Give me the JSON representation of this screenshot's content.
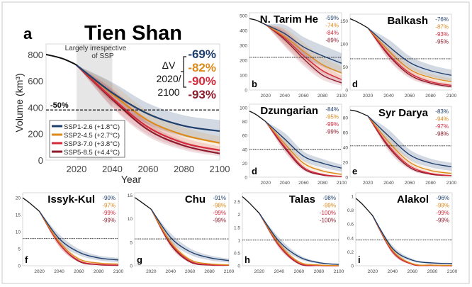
{
  "colors": {
    "ssp126": "#1f3f6e",
    "ssp245": "#dd8a1c",
    "ssp370": "#d42a3c",
    "ssp585": "#8e1b2b",
    "hist": "#111111",
    "band_gray": "#e6e6e6"
  },
  "chart_data": [
    {
      "id": "a",
      "type": "line",
      "panel_label": "a",
      "title": "Tien Shan",
      "xlabel": "Year",
      "ylabel": "Volume (km³)",
      "xlim": [
        2003,
        2100
      ],
      "ylim": [
        0,
        880
      ],
      "xticks": [
        2020,
        2040,
        2060,
        2080,
        2100
      ],
      "yticks": [
        0,
        200,
        400,
        600,
        800
      ],
      "half_line": {
        "value": 380,
        "label": "-50%"
      },
      "shaded_period": {
        "x": [
          2020,
          2040
        ],
        "label_lines": [
          "Largely irrespective",
          "of SSP"
        ]
      },
      "delta_label_lines": [
        "ΔV",
        "2020/",
        "2100"
      ],
      "history": {
        "x": [
          2003,
          2008,
          2013,
          2018,
          2020
        ],
        "y": [
          800,
          785,
          765,
          735,
          720
        ]
      },
      "x": [
        2020,
        2040,
        2060,
        2080,
        2100
      ],
      "series": [
        {
          "name": "SSP1-2.6 (+1.8°C)",
          "key": "ssp126",
          "values": [
            720,
            510,
            350,
            260,
            220
          ],
          "change": "-69%"
        },
        {
          "name": "SSP2-4.5 (+2.7°C)",
          "key": "ssp245",
          "values": [
            720,
            500,
            300,
            190,
            130
          ],
          "change": "-82%"
        },
        {
          "name": "SSP3-7.0 (+3.8°C)",
          "key": "ssp370",
          "values": [
            720,
            470,
            250,
            130,
            75
          ],
          "change": "-90%"
        },
        {
          "name": "SSP5-8.5 (+4.4°C)",
          "key": "ssp585",
          "values": [
            720,
            460,
            230,
            110,
            50
          ],
          "change": "-93%"
        }
      ]
    },
    {
      "id": "b",
      "type": "line",
      "panel_label": "b",
      "title": "N. Tarim He",
      "xlim": [
        2003,
        2100
      ],
      "ylim": [
        0,
        520
      ],
      "xticks": [
        2020,
        2040,
        2060,
        2080,
        2100
      ],
      "yticks": [
        0,
        100,
        200,
        300,
        400,
        500
      ],
      "half_line": {
        "value": 220
      },
      "history": {
        "x": [
          2003,
          2010,
          2020
        ],
        "y": [
          480,
          470,
          440
        ]
      },
      "x": [
        2020,
        2040,
        2060,
        2080,
        2100
      ],
      "series": [
        {
          "key": "ssp126",
          "values": [
            440,
            380,
            290,
            230,
            180
          ],
          "change": "-59%"
        },
        {
          "key": "ssp245",
          "values": [
            440,
            360,
            260,
            170,
            115
          ],
          "change": "-74%"
        },
        {
          "key": "ssp370",
          "values": [
            440,
            350,
            230,
            130,
            70
          ],
          "change": "-84%"
        },
        {
          "key": "ssp585",
          "values": [
            440,
            340,
            210,
            100,
            48
          ],
          "change": "-89%"
        }
      ]
    },
    {
      "id": "c",
      "type": "line",
      "panel_label": "d",
      "title": "Balkash",
      "xlim": [
        2003,
        2100
      ],
      "ylim": [
        0,
        165
      ],
      "xticks": [
        2020,
        2040,
        2060,
        2080,
        2100
      ],
      "yticks": [
        0,
        50,
        100,
        150
      ],
      "half_line": {
        "value": 68
      },
      "history": {
        "x": [
          2003,
          2010,
          2020
        ],
        "y": [
          155,
          148,
          135
        ]
      },
      "x": [
        2020,
        2040,
        2060,
        2080,
        2100
      ],
      "series": [
        {
          "key": "ssp126",
          "values": [
            135,
            95,
            60,
            42,
            32
          ],
          "change": "-76%"
        },
        {
          "key": "ssp245",
          "values": [
            135,
            85,
            45,
            27,
            18
          ],
          "change": "-87%"
        },
        {
          "key": "ssp370",
          "values": [
            135,
            78,
            37,
            18,
            10
          ],
          "change": "-93%"
        },
        {
          "key": "ssp585",
          "values": [
            135,
            75,
            33,
            15,
            7
          ],
          "change": "-95%"
        }
      ]
    },
    {
      "id": "d",
      "type": "line",
      "panel_label": "d",
      "title": "Dzungarian",
      "xlim": [
        2003,
        2100
      ],
      "ylim": [
        0,
        105
      ],
      "xticks": [
        2020,
        2040,
        2060,
        2080,
        2100
      ],
      "yticks": [
        0,
        20,
        40,
        60,
        80,
        100
      ],
      "half_line": {
        "value": 40
      },
      "history": {
        "x": [
          2003,
          2010,
          2020
        ],
        "y": [
          95,
          90,
          80
        ]
      },
      "x": [
        2020,
        2040,
        2060,
        2080,
        2100
      ],
      "series": [
        {
          "key": "ssp126",
          "values": [
            80,
            55,
            30,
            20,
            13
          ],
          "change": "-84%"
        },
        {
          "key": "ssp245",
          "values": [
            80,
            48,
            20,
            9,
            4
          ],
          "change": "-95%"
        },
        {
          "key": "ssp370",
          "values": [
            80,
            44,
            14,
            4,
            1
          ],
          "change": "-99%"
        },
        {
          "key": "ssp585",
          "values": [
            80,
            42,
            12,
            3,
            1
          ],
          "change": "-99%"
        }
      ]
    },
    {
      "id": "e",
      "type": "line",
      "panel_label": "e",
      "title": "Syr Darya",
      "xlim": [
        2003,
        2100
      ],
      "ylim": [
        0,
        95
      ],
      "xticks": [
        2020,
        2040,
        2060,
        2080,
        2100
      ],
      "yticks": [
        0,
        20,
        40,
        60,
        80
      ],
      "half_line": {
        "value": 42
      },
      "history": {
        "x": [
          2003,
          2010,
          2020
        ],
        "y": [
          90,
          88,
          82
        ]
      },
      "x": [
        2020,
        2040,
        2060,
        2080,
        2100
      ],
      "series": [
        {
          "key": "ssp126",
          "values": [
            82,
            55,
            30,
            19,
            14
          ],
          "change": "-83%"
        },
        {
          "key": "ssp245",
          "values": [
            82,
            47,
            20,
            9,
            5
          ],
          "change": "-94%"
        },
        {
          "key": "ssp370",
          "values": [
            82,
            42,
            15,
            5,
            2
          ],
          "change": "-97%"
        },
        {
          "key": "ssp585",
          "values": [
            82,
            40,
            13,
            4,
            2
          ],
          "change": "-98%"
        }
      ]
    },
    {
      "id": "f",
      "type": "line",
      "panel_label": "f",
      "title": "Issyk-Kul",
      "xlim": [
        2003,
        2100
      ],
      "ylim": [
        0,
        21.5
      ],
      "xticks": [
        2020,
        2040,
        2060,
        2080,
        2100
      ],
      "yticks": [
        0,
        5,
        10,
        15,
        20
      ],
      "half_line": {
        "value": 8
      },
      "history": {
        "x": [
          2003,
          2010,
          2020
        ],
        "y": [
          20,
          18.5,
          16
        ]
      },
      "x": [
        2020,
        2040,
        2060,
        2080,
        2100
      ],
      "series": [
        {
          "key": "ssp126",
          "values": [
            16,
            8,
            4,
            2.3,
            1.7
          ],
          "change": "-90%"
        },
        {
          "key": "ssp245",
          "values": [
            16,
            7,
            2,
            0.8,
            0.5
          ],
          "change": "-97%"
        },
        {
          "key": "ssp370",
          "values": [
            16,
            6.5,
            1.5,
            0.4,
            0.2
          ],
          "change": "-99%"
        },
        {
          "key": "ssp585",
          "values": [
            16,
            6.5,
            1.3,
            0.3,
            0.1
          ],
          "change": "-99%"
        }
      ]
    },
    {
      "id": "g",
      "type": "line",
      "panel_label": "g",
      "title": "Chu",
      "xlim": [
        2003,
        2100
      ],
      "ylim": [
        0,
        15.5
      ],
      "xticks": [
        2020,
        2040,
        2060,
        2080,
        2100
      ],
      "yticks": [
        0,
        5,
        10,
        15
      ],
      "half_line": {
        "value": 5.7
      },
      "history": {
        "x": [
          2003,
          2010,
          2020
        ],
        "y": [
          14.5,
          13.5,
          12
        ]
      },
      "x": [
        2020,
        2040,
        2060,
        2080,
        2100
      ],
      "series": [
        {
          "key": "ssp126",
          "values": [
            12,
            6,
            3,
            1.7,
            1.1
          ],
          "change": "-91%"
        },
        {
          "key": "ssp245",
          "values": [
            12,
            5,
            1.3,
            0.4,
            0.2
          ],
          "change": "-98%"
        },
        {
          "key": "ssp370",
          "values": [
            12,
            4.8,
            1,
            0.2,
            0.1
          ],
          "change": "-99%"
        },
        {
          "key": "ssp585",
          "values": [
            12,
            4.5,
            0.8,
            0.15,
            0.1
          ],
          "change": "-99%"
        }
      ]
    },
    {
      "id": "h",
      "type": "line",
      "panel_label": "h",
      "title": "Talas",
      "xlim": [
        2003,
        2100
      ],
      "ylim": [
        0,
        2.85
      ],
      "xticks": [
        2020,
        2040,
        2060,
        2080,
        2100
      ],
      "yticks": [
        0,
        0.5,
        1,
        1.5,
        2,
        2.5
      ],
      "half_line": {
        "value": 1.0
      },
      "history": {
        "x": [
          2003,
          2010,
          2020
        ],
        "y": [
          2.7,
          2.45,
          2.05
        ]
      },
      "x": [
        2020,
        2040,
        2060,
        2080,
        2100
      ],
      "series": [
        {
          "key": "ssp126",
          "values": [
            2.05,
            0.95,
            0.35,
            0.12,
            0.05
          ],
          "change": "-98%"
        },
        {
          "key": "ssp245",
          "values": [
            2.05,
            0.85,
            0.15,
            0.03,
            0.01
          ],
          "change": "-99%"
        },
        {
          "key": "ssp370",
          "values": [
            2.05,
            0.8,
            0.1,
            0.01,
            0
          ],
          "change": "-100%"
        },
        {
          "key": "ssp585",
          "values": [
            2.05,
            0.78,
            0.08,
            0.01,
            0
          ],
          "change": "-100%"
        }
      ]
    },
    {
      "id": "i",
      "type": "line",
      "panel_label": "i",
      "title": "Alakol",
      "xlim": [
        2003,
        2100
      ],
      "ylim": [
        0,
        1.05
      ],
      "xticks": [
        2020,
        2040,
        2060,
        2080,
        2100
      ],
      "yticks": [
        0,
        0.2,
        0.4,
        0.6,
        0.8,
        1
      ],
      "half_line": {
        "value": 0.37
      },
      "history": {
        "x": [
          2003,
          2010,
          2020
        ],
        "y": [
          0.97,
          0.88,
          0.72
        ]
      },
      "x": [
        2020,
        2040,
        2060,
        2080,
        2100
      ],
      "series": [
        {
          "key": "ssp126",
          "values": [
            0.72,
            0.25,
            0.08,
            0.04,
            0.03
          ],
          "change": "-96%"
        },
        {
          "key": "ssp245",
          "values": [
            0.72,
            0.22,
            0.03,
            0.01,
            0.005
          ],
          "change": "-99%"
        },
        {
          "key": "ssp370",
          "values": [
            0.72,
            0.2,
            0.02,
            0.005,
            0
          ],
          "change": "-99%"
        },
        {
          "key": "ssp585",
          "values": [
            0.72,
            0.2,
            0.02,
            0.005,
            0
          ],
          "change": "-99%"
        }
      ]
    }
  ]
}
